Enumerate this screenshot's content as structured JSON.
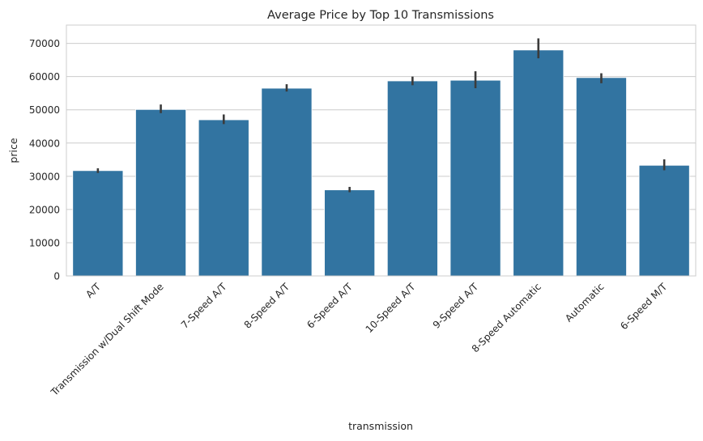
{
  "chart_data": {
    "type": "bar",
    "title": "Average Price by Top 10 Transmissions",
    "xlabel": "transmission",
    "ylabel": "price",
    "ylim": [
      0,
      75500
    ],
    "yticks": [
      0,
      10000,
      20000,
      30000,
      40000,
      50000,
      60000,
      70000
    ],
    "grid": "horizontal",
    "colors": {
      "bar": "#3274a1",
      "error_bar": "#3b3b3b"
    },
    "categories": [
      "A/T",
      "Transmission w/Dual Shift Mode",
      "7-Speed A/T",
      "8-Speed A/T",
      "6-Speed A/T",
      "10-Speed A/T",
      "9-Speed A/T",
      "8-Speed Automatic",
      "Automatic",
      "6-Speed M/T"
    ],
    "values": [
      31700,
      50100,
      47000,
      56500,
      25900,
      58700,
      58900,
      68000,
      59700,
      33300
    ],
    "ci_low": [
      31000,
      49000,
      45700,
      55500,
      25200,
      57400,
      56500,
      65500,
      58000,
      31800
    ],
    "ci_high": [
      32400,
      51600,
      48600,
      57700,
      26800,
      60000,
      61600,
      71500,
      61000,
      35100
    ]
  }
}
